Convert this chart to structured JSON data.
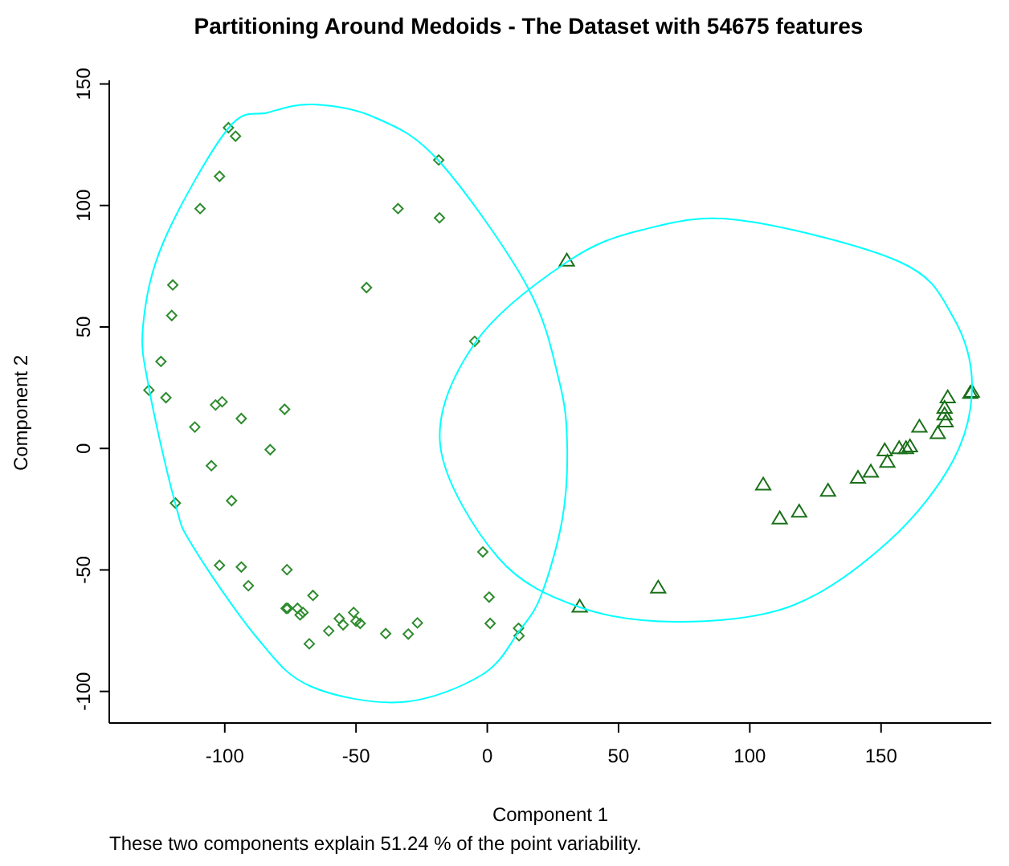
{
  "chart_data": {
    "type": "scatter",
    "title": "Partitioning Around Medoids - The Dataset with 54675 features",
    "xlabel": "Component 1",
    "ylabel": "Component 2",
    "annotations": [
      "These two components explain 51.24 % of the point variability."
    ],
    "xlim": [
      -144,
      192
    ],
    "ylim": [
      -113,
      151.5
    ],
    "xticks": [
      -100,
      -50,
      0,
      50,
      100,
      150
    ],
    "yticks": [
      -100,
      -50,
      0,
      50,
      100,
      150
    ],
    "grid": false,
    "legend": false,
    "series": [
      {
        "type": "scatter",
        "marker": "diamond",
        "color": "#2e8b2e",
        "x": [
          -98.6,
          -95.9,
          -18.5,
          -102,
          -109.4,
          -34,
          -18.2,
          -119.8,
          -46,
          -120.2,
          -4.8,
          -124.3,
          -128.9,
          -122.4,
          -103.5,
          -101,
          -77.2,
          -93.7,
          -111.4,
          -82.7,
          -105.1,
          -97.4,
          -118.8,
          -1.7,
          -102,
          -93.7,
          -76.3,
          -91,
          -66.4,
          0.7,
          -76.6,
          -76,
          -72.3,
          -71.3,
          -70.2,
          -50.9,
          -56.4,
          -50,
          -48.4,
          -54.9,
          -26.6,
          1.1,
          -60.4,
          -38.7,
          -30.1,
          -67.8,
          11.9,
          12.1
        ],
        "values": [
          132,
          128.5,
          118.7,
          112,
          98.7,
          98.7,
          94.9,
          67.3,
          66.2,
          54.7,
          44.1,
          35.8,
          24,
          20.9,
          17.9,
          19.2,
          16.1,
          12.3,
          8.8,
          -0.5,
          -7.1,
          -21.5,
          -22.5,
          -42.6,
          -48.1,
          -48.8,
          -49.9,
          -56.5,
          -60.5,
          -61.2,
          -65.8,
          -65.8,
          -65.8,
          -68.5,
          -67.5,
          -67.5,
          -70,
          -71.1,
          -72,
          -72.6,
          -71.8,
          -72,
          -75.1,
          -76.2,
          -76.4,
          -80.4,
          -74,
          -77.1
        ]
      },
      {
        "type": "scatter",
        "marker": "triangle",
        "color": "#1a701a",
        "x": [
          30.3,
          35.2,
          65.1,
          105.1,
          111.4,
          118.8,
          129.8,
          141.2,
          146.1,
          152.4,
          151.4,
          156.9,
          159.5,
          161,
          164.6,
          171.6,
          174.6,
          174.2,
          174.2,
          175.4,
          184,
          184.6
        ],
        "values": [
          77.2,
          -65.2,
          -57.4,
          -15,
          -28.9,
          -26.1,
          -17.5,
          -12.2,
          -9.7,
          -5.6,
          -0.9,
          0,
          0,
          0.7,
          8.8,
          6.2,
          11,
          13.9,
          16.6,
          20.9,
          22.7,
          23.2
        ]
      }
    ]
  }
}
